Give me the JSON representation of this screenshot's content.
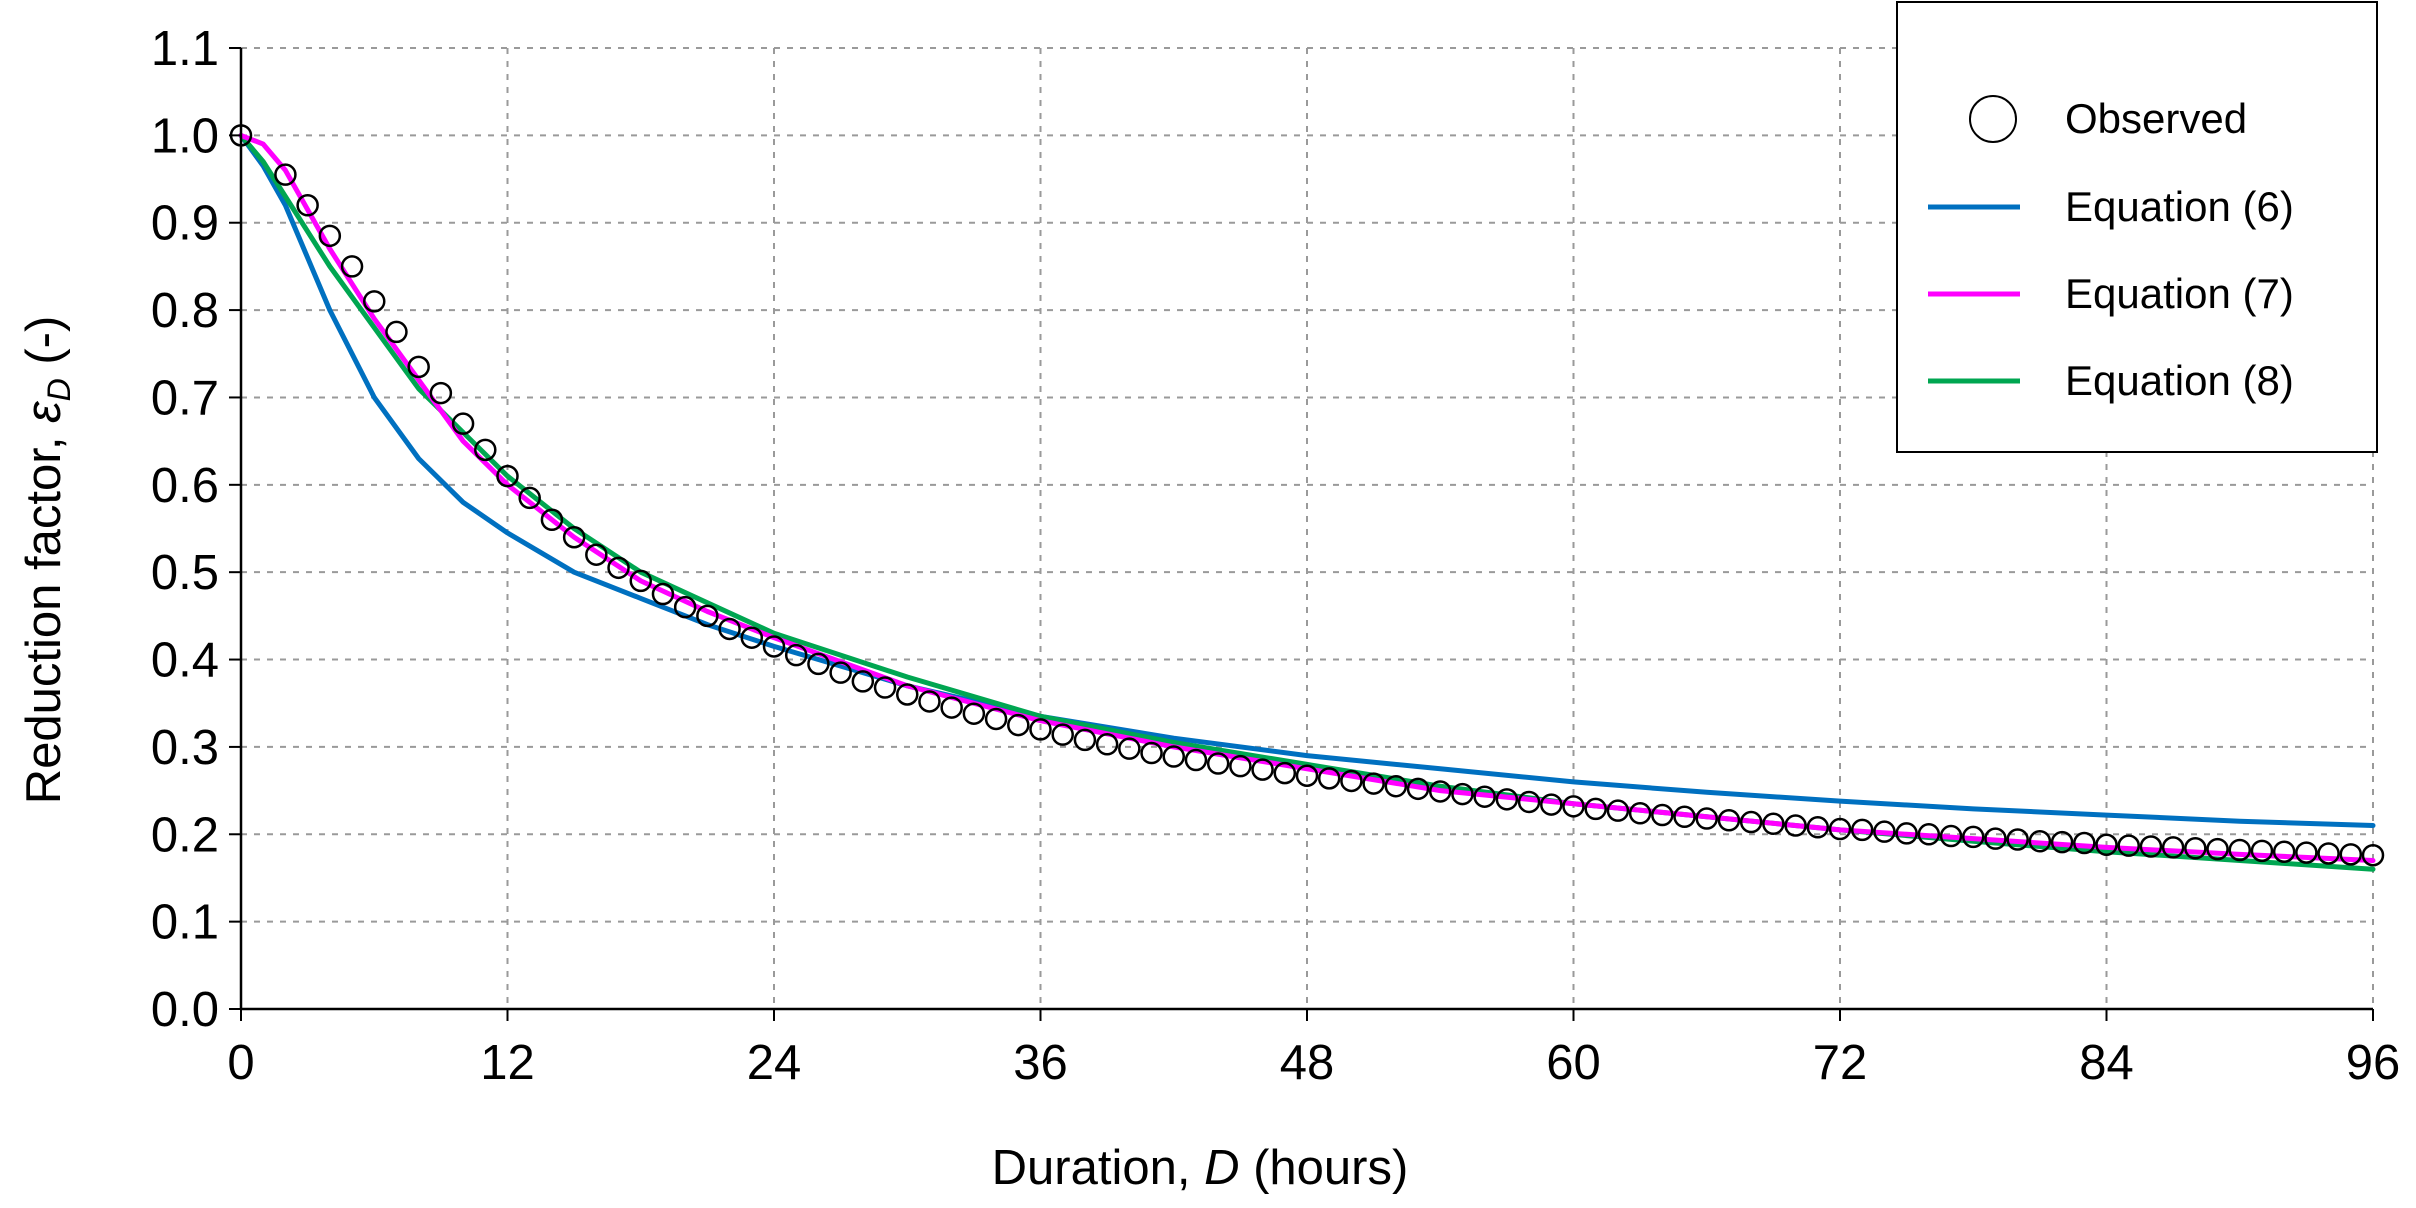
{
  "chart_data": {
    "type": "line",
    "xlabel_prefix": "Duration, ",
    "xlabel_var": "D",
    "xlabel_suffix": " (hours)",
    "ylabel_prefix": "Reduction factor, ",
    "ylabel_var": "ε",
    "ylabel_sub": "D",
    "ylabel_suffix": " (-)",
    "xlim": [
      0,
      96
    ],
    "ylim": [
      0,
      1.1
    ],
    "xticks": [
      0,
      12,
      24,
      36,
      48,
      60,
      72,
      84,
      96
    ],
    "yticks": [
      "0.0",
      "0.1",
      "0.2",
      "0.3",
      "0.4",
      "0.5",
      "0.6",
      "0.7",
      "0.8",
      "0.9",
      "1.0",
      "1.1"
    ],
    "grid": true,
    "legend_position": "top-right",
    "series": [
      {
        "name": "Observed",
        "style": "markers",
        "marker": "open-circle",
        "color": "#000000",
        "x": [
          0,
          2,
          3,
          4,
          5,
          6,
          7,
          8,
          9,
          10,
          11,
          12,
          13,
          14,
          15,
          16,
          17,
          18,
          19,
          20,
          21,
          22,
          23,
          24,
          25,
          26,
          27,
          28,
          29,
          30,
          31,
          32,
          33,
          34,
          35,
          36,
          37,
          38,
          39,
          40,
          41,
          42,
          43,
          44,
          45,
          46,
          47,
          48,
          49,
          50,
          51,
          52,
          53,
          54,
          55,
          56,
          57,
          58,
          59,
          60,
          61,
          62,
          63,
          64,
          65,
          66,
          67,
          68,
          69,
          70,
          71,
          72,
          73,
          74,
          75,
          76,
          77,
          78,
          79,
          80,
          81,
          82,
          83,
          84,
          85,
          86,
          87,
          88,
          89,
          90,
          91,
          92,
          93,
          94,
          95,
          96
        ],
        "y": [
          1.0,
          0.955,
          0.92,
          0.885,
          0.85,
          0.81,
          0.775,
          0.735,
          0.705,
          0.67,
          0.64,
          0.61,
          0.585,
          0.56,
          0.54,
          0.52,
          0.505,
          0.49,
          0.475,
          0.46,
          0.45,
          0.435,
          0.425,
          0.415,
          0.405,
          0.395,
          0.385,
          0.375,
          0.368,
          0.36,
          0.352,
          0.345,
          0.338,
          0.332,
          0.325,
          0.32,
          0.314,
          0.308,
          0.303,
          0.298,
          0.293,
          0.289,
          0.285,
          0.281,
          0.278,
          0.274,
          0.27,
          0.267,
          0.264,
          0.261,
          0.258,
          0.255,
          0.252,
          0.249,
          0.246,
          0.243,
          0.24,
          0.237,
          0.234,
          0.232,
          0.229,
          0.227,
          0.224,
          0.222,
          0.22,
          0.218,
          0.216,
          0.214,
          0.212,
          0.21,
          0.208,
          0.206,
          0.205,
          0.203,
          0.201,
          0.2,
          0.198,
          0.197,
          0.195,
          0.194,
          0.192,
          0.191,
          0.19,
          0.188,
          0.187,
          0.186,
          0.185,
          0.184,
          0.183,
          0.182,
          0.181,
          0.18,
          0.179,
          0.178,
          0.177,
          0.176
        ]
      },
      {
        "name": "Equation (6)",
        "style": "line",
        "color": "#0070C0",
        "x": [
          0,
          1,
          2,
          3,
          4,
          6,
          8,
          10,
          12,
          15,
          18,
          21,
          24,
          30,
          36,
          42,
          48,
          54,
          60,
          66,
          72,
          78,
          84,
          90,
          96
        ],
        "y": [
          1.0,
          0.965,
          0.92,
          0.86,
          0.8,
          0.7,
          0.63,
          0.58,
          0.545,
          0.5,
          0.47,
          0.44,
          0.415,
          0.37,
          0.335,
          0.31,
          0.29,
          0.275,
          0.26,
          0.248,
          0.238,
          0.229,
          0.222,
          0.215,
          0.21
        ]
      },
      {
        "name": "Equation (7)",
        "style": "line",
        "color": "#FF00FF",
        "x": [
          0,
          1,
          2,
          4,
          6,
          8,
          10,
          12,
          15,
          18,
          21,
          24,
          30,
          36,
          42,
          48,
          54,
          60,
          66,
          72,
          78,
          84,
          90,
          96
        ],
        "y": [
          1.0,
          0.99,
          0.96,
          0.87,
          0.79,
          0.72,
          0.65,
          0.6,
          0.54,
          0.49,
          0.455,
          0.425,
          0.37,
          0.33,
          0.3,
          0.275,
          0.25,
          0.235,
          0.22,
          0.205,
          0.195,
          0.185,
          0.177,
          0.17
        ]
      },
      {
        "name": "Equation (8)",
        "style": "line",
        "color": "#00A651",
        "x": [
          0,
          1,
          2,
          4,
          6,
          8,
          10,
          12,
          15,
          18,
          21,
          24,
          30,
          36,
          42,
          48,
          54,
          60,
          66,
          72,
          78,
          84,
          90,
          96
        ],
        "y": [
          1.0,
          0.97,
          0.93,
          0.85,
          0.78,
          0.71,
          0.66,
          0.61,
          0.55,
          0.5,
          0.465,
          0.43,
          0.38,
          0.335,
          0.305,
          0.28,
          0.255,
          0.235,
          0.22,
          0.205,
          0.192,
          0.18,
          0.17,
          0.16
        ]
      }
    ]
  }
}
